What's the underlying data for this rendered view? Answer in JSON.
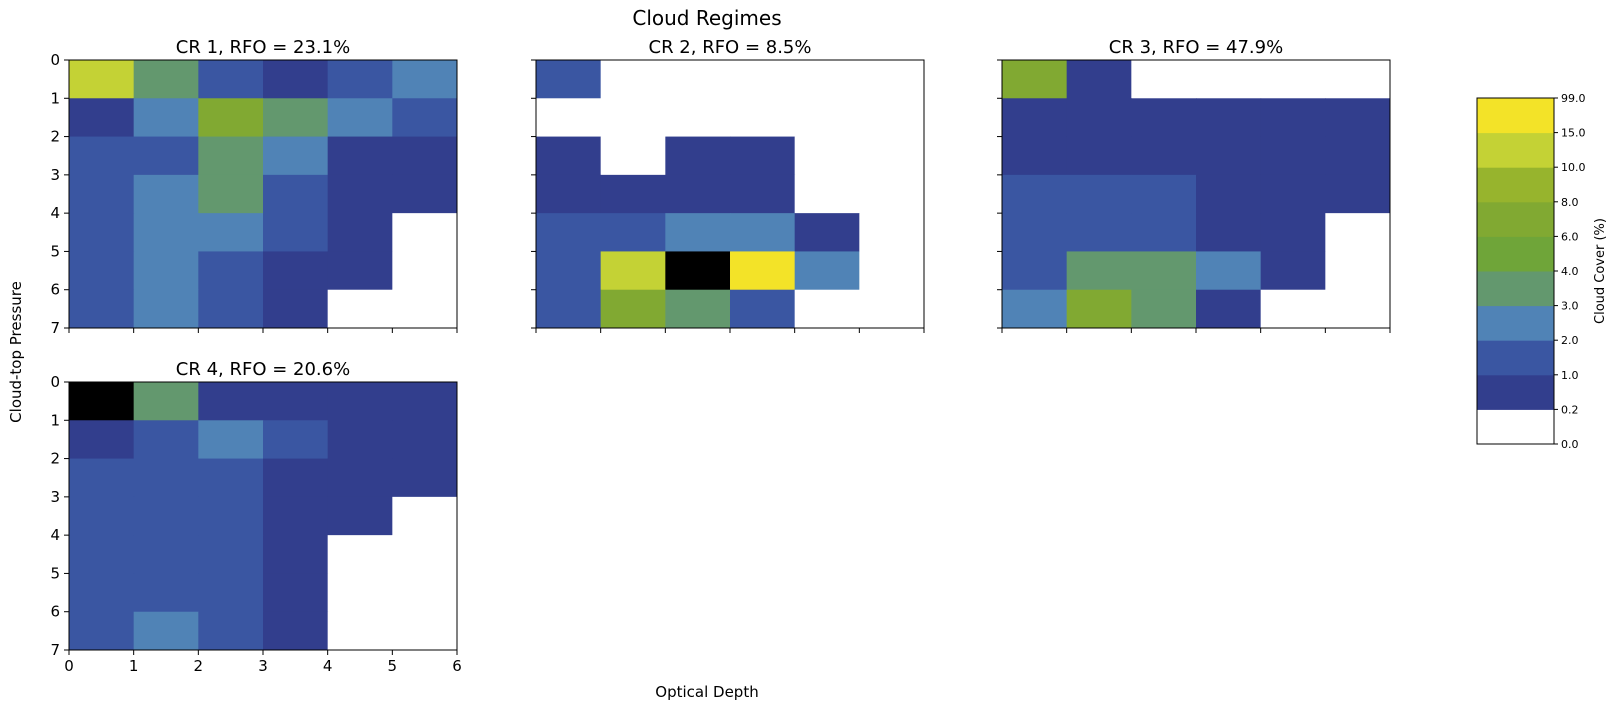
{
  "figure": {
    "title": "Cloud Regimes",
    "xlabel": "Optical Depth",
    "ylabel": "Cloud-top Pressure"
  },
  "colorbar": {
    "label": "Cloud Cover (%)",
    "boundaries": [
      "0.0",
      "0.2",
      "1.0",
      "2.0",
      "3.0",
      "4.0",
      "6.0",
      "8.0",
      "10.0",
      "15.0",
      "99.0"
    ],
    "colors": [
      "#ffffff",
      "#323e8d",
      "#3a56a2",
      "#5083b6",
      "#63986e",
      "#6fa539",
      "#81a932",
      "#97b42d",
      "#c4d235",
      "#f3e328"
    ]
  },
  "chart_data": [
    {
      "type": "heatmap",
      "title": "CR 1, RFO = 23.1%",
      "x_ticks": [
        0,
        1,
        2,
        3,
        4,
        5,
        6
      ],
      "y_ticks": [
        0,
        1,
        2,
        3,
        4,
        5,
        6,
        7
      ],
      "show_x_ticklabels": false,
      "show_y_ticklabels": true,
      "color_bins": [
        [
          8,
          4,
          2,
          1,
          2,
          3
        ],
        [
          1,
          3,
          6,
          4,
          3,
          2
        ],
        [
          2,
          2,
          4,
          3,
          1,
          1
        ],
        [
          2,
          3,
          4,
          2,
          1,
          1
        ],
        [
          2,
          3,
          3,
          2,
          1,
          0
        ],
        [
          2,
          3,
          2,
          1,
          1,
          0
        ],
        [
          2,
          3,
          2,
          1,
          0,
          0
        ]
      ]
    },
    {
      "type": "heatmap",
      "title": "CR 2, RFO = 8.5%",
      "x_ticks": [
        0,
        1,
        2,
        3,
        4,
        5,
        6
      ],
      "y_ticks": [
        0,
        1,
        2,
        3,
        4,
        5,
        6,
        7
      ],
      "show_x_ticklabels": false,
      "show_y_ticklabels": false,
      "color_bins": [
        [
          2,
          0,
          0,
          0,
          0,
          0
        ],
        [
          0,
          0,
          0,
          0,
          0,
          0
        ],
        [
          1,
          0,
          1,
          1,
          0,
          0
        ],
        [
          1,
          1,
          1,
          1,
          0,
          0
        ],
        [
          2,
          2,
          3,
          3,
          1,
          0
        ],
        [
          2,
          8,
          10,
          9,
          3,
          0
        ],
        [
          2,
          6,
          4,
          2,
          0,
          0
        ]
      ]
    },
    {
      "type": "heatmap",
      "title": "CR 3, RFO = 47.9%",
      "x_ticks": [
        0,
        1,
        2,
        3,
        4,
        5,
        6
      ],
      "y_ticks": [
        0,
        1,
        2,
        3,
        4,
        5,
        6,
        7
      ],
      "show_x_ticklabels": false,
      "show_y_ticklabels": false,
      "color_bins": [
        [
          6,
          1,
          0,
          0,
          0,
          0
        ],
        [
          1,
          1,
          1,
          1,
          1,
          1
        ],
        [
          1,
          1,
          1,
          1,
          1,
          1
        ],
        [
          2,
          2,
          2,
          1,
          1,
          1
        ],
        [
          2,
          2,
          2,
          1,
          1,
          0
        ],
        [
          2,
          4,
          4,
          3,
          1,
          0
        ],
        [
          3,
          6,
          4,
          1,
          0,
          0
        ]
      ]
    },
    {
      "type": "heatmap",
      "title": "CR 4, RFO = 20.6%",
      "x_ticks": [
        0,
        1,
        2,
        3,
        4,
        5,
        6
      ],
      "y_ticks": [
        0,
        1,
        2,
        3,
        4,
        5,
        6,
        7
      ],
      "show_x_ticklabels": true,
      "show_y_ticklabels": true,
      "color_bins": [
        [
          10,
          4,
          1,
          1,
          1,
          1
        ],
        [
          1,
          2,
          3,
          2,
          1,
          1
        ],
        [
          2,
          2,
          2,
          1,
          1,
          1
        ],
        [
          2,
          2,
          2,
          1,
          1,
          0
        ],
        [
          2,
          2,
          2,
          1,
          0,
          0
        ],
        [
          2,
          2,
          2,
          1,
          0,
          0
        ],
        [
          2,
          3,
          2,
          1,
          0,
          0
        ]
      ]
    }
  ]
}
